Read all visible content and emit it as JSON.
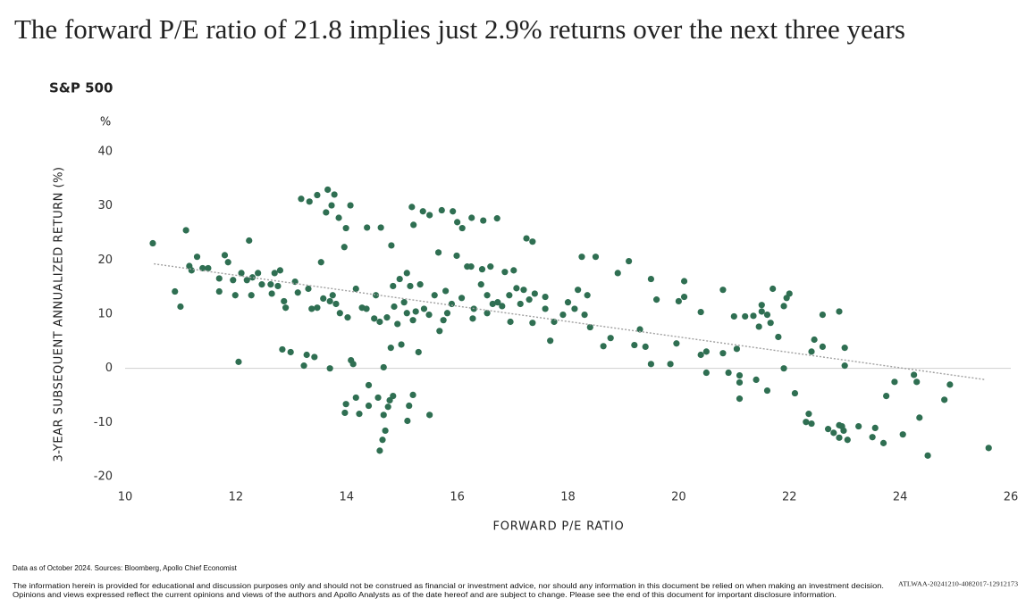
{
  "chart_data": {
    "type": "scatter",
    "title": "The forward P/E ratio of 21.8 implies just 2.9% returns over the next three years",
    "subtitle": "S&P 500",
    "y_unit": "%",
    "ylabel": "3-YEAR SUBSEQUENT ANNUALIZED RETURN (%)",
    "xlabel": "FORWARD P/E RATIO",
    "color": "#2f6f52",
    "xlim": [
      10,
      26
    ],
    "xticks": [
      10,
      12,
      14,
      16,
      18,
      20,
      22,
      24,
      26
    ],
    "ylim": [
      -20,
      40
    ],
    "yticks": [
      -20,
      -10,
      0,
      10,
      20,
      30,
      40
    ],
    "grid": false,
    "x": [
      10.5,
      10.9,
      11.0,
      11.1,
      11.16,
      11.2,
      11.3,
      11.4,
      11.5,
      11.7,
      11.7,
      11.8,
      11.86,
      11.95,
      11.99,
      12.05,
      12.1,
      12.2,
      12.24,
      12.28,
      12.3,
      12.4,
      12.47,
      12.63,
      12.65,
      12.7,
      12.76,
      12.8,
      12.84,
      12.87,
      12.9,
      12.99,
      13.07,
      13.12,
      13.18,
      13.23,
      13.28,
      13.33,
      13.37,
      13.42,
      13.47,
      13.54,
      13.58,
      13.63,
      13.66,
      13.7,
      13.7,
      13.73,
      13.78,
      13.81,
      13.86,
      13.96,
      13.99,
      14.02,
      14.07,
      13.99,
      13.97,
      14.08,
      14.12,
      14.17,
      14.17,
      14.23,
      14.28,
      14.37,
      14.4,
      14.5,
      14.4,
      14.57,
      14.62,
      14.67,
      14.73,
      14.81,
      14.84,
      14.6,
      14.65,
      14.7,
      14.67,
      14.75,
      14.78,
      15.1,
      15.13,
      15.2,
      15.21,
      14.8,
      14.99,
      15.3,
      15.5,
      15.18,
      15.38,
      15.5,
      15.72,
      15.92,
      16,
      16.09,
      16.26,
      16.47,
      16.72,
      15.66,
      15.99,
      16.18,
      16.25,
      16.45,
      16.6,
      16.86,
      17.02,
      15.68,
      15.75,
      16.28,
      16.64,
      16.96,
      17.36,
      17.68,
      17.75,
      17.59,
      17.91,
      18,
      18.12,
      18.3,
      18.4,
      18.64,
      18.77,
      18.18,
      18.35,
      17.59,
      17.2,
      17.4,
      14.53,
      14.86,
      14.96,
      15.04,
      15.09,
      15.15,
      15.25,
      15.33,
      15.4,
      15.49,
      15.59,
      15.79,
      15.9,
      16.08,
      16.3,
      16.43,
      16.54,
      16.73,
      16.81,
      16.94,
      17.07,
      17.14,
      17.3,
      14.84,
      14.92,
      14.36,
      13.88,
      13.75,
      13.47,
      13.31,
      14.6,
      16.54,
      15.82,
      15.2,
      15.09,
      17.25,
      17.36,
      18.25,
      18.5,
      18.9,
      19.1,
      19.2,
      19.3,
      19.4,
      19.5,
      19.5,
      19.6,
      19.85,
      19.96,
      20,
      20.1,
      20.1,
      20.4,
      20.4,
      20.5,
      20.5,
      20.8,
      20.8,
      20.9,
      21,
      21.05,
      21.1,
      21.1,
      21.1,
      21.2,
      21.35,
      21.4,
      21.45,
      21.5,
      21.5,
      21.6,
      21.6,
      21.66,
      21.7,
      21.8,
      21.9,
      21.9,
      21.95,
      22,
      22.1,
      22.3,
      22.35,
      22.4,
      22.4,
      22.45,
      22.6,
      22.6,
      22.7,
      22.8,
      22.9,
      22.9,
      22.95,
      22.98,
      23,
      23,
      23.05,
      22.9,
      23.25,
      23.5,
      23.55,
      23.7,
      23.75,
      23.9,
      24.05,
      24.25,
      24.3,
      24.35,
      24.5,
      24.8,
      24.9,
      25.6
    ],
    "values": [
      23.1,
      14.2,
      11.4,
      25.5,
      18.9,
      18.1,
      20.6,
      18.5,
      18.5,
      14.2,
      16.6,
      20.9,
      19.6,
      16.3,
      13.5,
      1.2,
      17.6,
      16.3,
      23.6,
      13.5,
      16.8,
      17.6,
      15.5,
      15.5,
      13.8,
      17.6,
      15.2,
      18.1,
      3.5,
      12.4,
      11.2,
      3,
      16,
      14,
      31.3,
      0.5,
      2.5,
      30.8,
      11,
      2.1,
      32,
      19.6,
      12.9,
      28.8,
      33,
      12.4,
      0,
      30.1,
      32.1,
      11.9,
      27.8,
      22.4,
      25.9,
      9.4,
      30.1,
      -6.6,
      -8.2,
      1.5,
      0.8,
      14.7,
      -5.4,
      -8.4,
      11.2,
      26,
      -6.9,
      9.2,
      -3.1,
      -5.4,
      26,
      -8.6,
      9.4,
      22.7,
      -5.1,
      -15.2,
      -13.2,
      -11.5,
      0.2,
      -7.1,
      -5.9,
      -9.7,
      -6.9,
      -4.9,
      26.5,
      3.8,
      4.4,
      3,
      -8.6,
      29.8,
      29,
      28.3,
      29.2,
      29,
      27,
      25.9,
      27.8,
      27.3,
      27.7,
      21.4,
      20.8,
      18.8,
      18.8,
      18.3,
      18.8,
      17.8,
      18.1,
      6.9,
      8.9,
      9.2,
      11.9,
      8.6,
      8.4,
      5.1,
      8.6,
      11,
      9.9,
      12.2,
      11,
      9.9,
      7.6,
      4.1,
      5.6,
      14.5,
      13.5,
      13.2,
      14.5,
      13.8,
      13.5,
      11.4,
      16.5,
      12.2,
      17.6,
      15.2,
      10.5,
      15.5,
      11,
      9.9,
      13.5,
      14.3,
      11.9,
      13,
      11,
      15.5,
      13.5,
      12.2,
      11.5,
      13.5,
      14.8,
      11.9,
      12.7,
      15.2,
      8.2,
      11,
      10.2,
      13.5,
      11.2,
      14.7,
      8.6,
      10.2,
      10.2,
      8.9,
      10.2,
      24,
      23.4,
      20.6,
      20.6,
      17.6,
      19.8,
      4.3,
      7.2,
      4,
      0.8,
      16.5,
      12.7,
      0.8,
      4.6,
      12.4,
      16.1,
      13.2,
      10.4,
      2.5,
      -0.8,
      3.1,
      14.5,
      2.8,
      -0.8,
      9.6,
      3.6,
      -1.3,
      -5.6,
      -2.6,
      9.6,
      9.7,
      -2.1,
      7.7,
      10.5,
      11.7,
      -4.1,
      9.9,
      8.4,
      14.7,
      5.8,
      11.5,
      0,
      13,
      13.8,
      -4.6,
      -9.9,
      -8.4,
      -10.2,
      3.1,
      5.3,
      9.9,
      4,
      -11.2,
      -11.9,
      -10.5,
      10.5,
      -10.7,
      -11.5,
      0.5,
      3.8,
      -13.2,
      -12.8,
      -10.7,
      -12.7,
      -11,
      -13.8,
      -5.1,
      -2.5,
      -12.2,
      -1.2,
      -2.5,
      -9.1,
      -16.1,
      -5.8,
      -3,
      -14.7
    ],
    "trendline": {
      "color": "#a0a0a0",
      "x": [
        10.52,
        25.55
      ],
      "values": [
        19.3,
        -2.1
      ]
    }
  },
  "notes": {
    "source": "Data as of October 2024. Sources: Bloomberg, Apollo Chief Economist",
    "disclaimer": [
      "The information herein is provided for educational and discussion purposes only and should not be construed as financial or investment advice, nor should any information in this document be relied on when making an investment decision.",
      "Opinions and views expressed reflect the current opinions and views of the authors and Apollo Analysts as of the date hereof and are subject to change. Please see the end of this document for important disclosure information."
    ],
    "code": "ATLWAA-20241210-4082017-12912173"
  }
}
